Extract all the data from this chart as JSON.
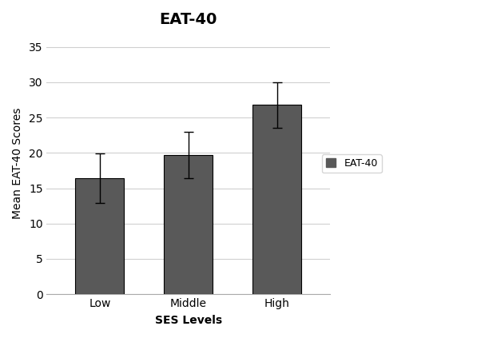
{
  "title": "EAT-40",
  "xlabel": "SES Levels",
  "ylabel": "Mean EAT-40 Scores",
  "categories": [
    "Low",
    "Middle",
    "High"
  ],
  "values": [
    16.4,
    19.7,
    26.8
  ],
  "errors": [
    3.5,
    3.3,
    3.2
  ],
  "bar_color": "#595959",
  "bar_width": 0.55,
  "ylim": [
    0,
    37
  ],
  "yticks": [
    0,
    5,
    10,
    15,
    20,
    25,
    30,
    35
  ],
  "legend_label": "EAT-40",
  "legend_color": "#595959",
  "background_color": "#ffffff",
  "plot_area_color": "#ffffff",
  "grid_color": "#d0d0d0",
  "title_fontsize": 14,
  "title_fontweight": "bold",
  "axis_label_fontsize": 10,
  "tick_fontsize": 10
}
